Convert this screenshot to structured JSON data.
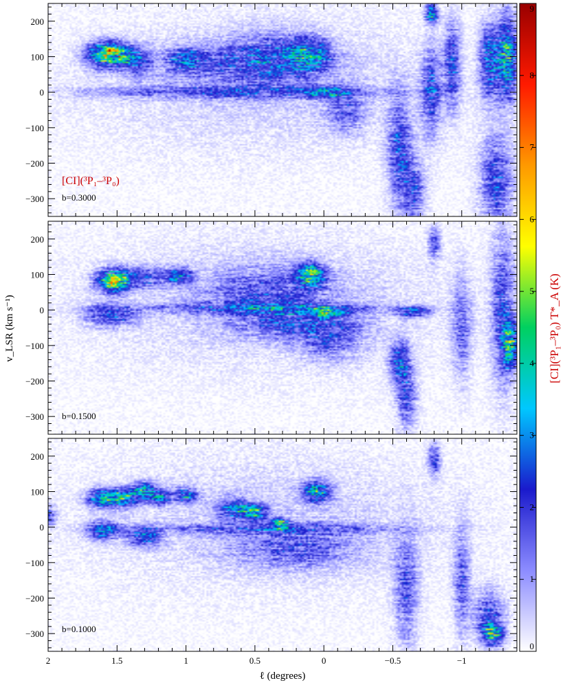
{
  "chart_data": {
    "type": "heatmap",
    "xlabel": "ℓ (degrees)",
    "ylabel": "v_LSR (km s⁻¹)",
    "xlim": [
      2.0,
      -1.4
    ],
    "ylim": [
      -350,
      250
    ],
    "x_ticks": [
      2,
      1.5,
      1,
      0.5,
      0,
      -0.5,
      -1
    ],
    "x_tick_labels": [
      "2",
      "1.5",
      "1",
      "0.5",
      "0",
      "−0.5",
      "−1"
    ],
    "y_ticks": [
      -300,
      -200,
      -100,
      0,
      100,
      200
    ],
    "y_tick_labels": [
      "−300",
      "−200",
      "−100",
      "0",
      "100",
      "200"
    ],
    "species_label": "[CI](³P₁–³P₀)",
    "colorbar": {
      "label": "[CI](³P₁–³P₀) T*_A (K)",
      "range": [
        0,
        9
      ],
      "ticks": [
        0,
        1,
        2,
        3,
        4,
        5,
        6,
        7,
        8,
        9
      ],
      "tick_labels": [
        "0",
        "1",
        "2",
        "3",
        "4",
        "5",
        "6",
        "7",
        "8",
        "9"
      ],
      "colormap": [
        "#ffffff",
        "#8c8cff",
        "#1a1acc",
        "#00c8ff",
        "#00d060",
        "#ffff00",
        "#ff9900",
        "#ff1a00",
        "#990000"
      ]
    },
    "panels": [
      {
        "b_label": "b=0.3000",
        "features": [
          {
            "l": 1.62,
            "v": 105,
            "peak": 3.2,
            "sl": 0.08,
            "sv": 25
          },
          {
            "l": 1.52,
            "v": 110,
            "peak": 4.2,
            "sl": 0.07,
            "sv": 20
          },
          {
            "l": 1.37,
            "v": 90,
            "peak": 2.4,
            "sl": 0.07,
            "sv": 25
          },
          {
            "l": 1.0,
            "v": 90,
            "peak": 2.4,
            "sl": 0.07,
            "sv": 20
          },
          {
            "l": 0.1,
            "v": 105,
            "peak": 2.8,
            "sl": 0.1,
            "sv": 30
          },
          {
            "l": 0.7,
            "v": 80,
            "peak": 1.3,
            "sl": 0.4,
            "sv": 40
          },
          {
            "l": 0.35,
            "v": 100,
            "peak": 1.5,
            "sl": 0.2,
            "sv": 50
          },
          {
            "l": 0.7,
            "v": 0,
            "peak": 1.6,
            "sl": 0.7,
            "sv": 12
          },
          {
            "l": 0.0,
            "v": 0,
            "peak": 2.6,
            "sl": 0.1,
            "sv": 10
          },
          {
            "l": -0.15,
            "v": -50,
            "peak": 1.5,
            "sl": 0.1,
            "sv": 40
          },
          {
            "l": -0.55,
            "v": -170,
            "peak": 2.2,
            "sl": 0.06,
            "sv": 100
          },
          {
            "l": -0.65,
            "v": -280,
            "peak": 1.8,
            "sl": 0.06,
            "sv": 60
          },
          {
            "l": -0.78,
            "v": 220,
            "peak": 4.0,
            "sl": 0.03,
            "sv": 18
          },
          {
            "l": -0.78,
            "v": 0,
            "peak": 2.2,
            "sl": 0.05,
            "sv": 80
          },
          {
            "l": -0.93,
            "v": 80,
            "peak": 2.3,
            "sl": 0.04,
            "sv": 80
          },
          {
            "l": -1.2,
            "v": 90,
            "peak": 2.8,
            "sl": 0.05,
            "sv": 70
          },
          {
            "l": -1.33,
            "v": 100,
            "peak": 3.8,
            "sl": 0.05,
            "sv": 80
          },
          {
            "l": -1.25,
            "v": -250,
            "peak": 2.2,
            "sl": 0.08,
            "sv": 90
          }
        ]
      },
      {
        "b_label": "b=0.1500",
        "features": [
          {
            "l": 1.53,
            "v": 80,
            "peak": 4.3,
            "sl": 0.08,
            "sv": 22
          },
          {
            "l": 1.35,
            "v": 90,
            "peak": 2.0,
            "sl": 0.15,
            "sv": 20
          },
          {
            "l": 1.05,
            "v": 95,
            "peak": 2.8,
            "sl": 0.06,
            "sv": 15
          },
          {
            "l": 1.55,
            "v": -15,
            "peak": 2.5,
            "sl": 0.12,
            "sv": 20
          },
          {
            "l": 0.1,
            "v": 100,
            "peak": 4.2,
            "sl": 0.07,
            "sv": 22
          },
          {
            "l": 0.4,
            "v": 50,
            "peak": 1.4,
            "sl": 0.3,
            "sv": 50
          },
          {
            "l": 0.5,
            "v": 5,
            "peak": 1.7,
            "sl": 0.6,
            "sv": 10
          },
          {
            "l": 0.0,
            "v": -5,
            "peak": 2.5,
            "sl": 0.12,
            "sv": 10
          },
          {
            "l": 0.2,
            "v": -40,
            "peak": 1.4,
            "sl": 0.3,
            "sv": 30
          },
          {
            "l": -0.05,
            "v": -90,
            "peak": 1.3,
            "sl": 0.15,
            "sv": 40
          },
          {
            "l": -0.55,
            "v": -150,
            "peak": 2.6,
            "sl": 0.05,
            "sv": 40
          },
          {
            "l": -0.6,
            "v": -250,
            "peak": 1.8,
            "sl": 0.05,
            "sv": 60
          },
          {
            "l": -0.65,
            "v": -5,
            "peak": 2.4,
            "sl": 0.08,
            "sv": 10
          },
          {
            "l": -0.8,
            "v": 190,
            "peak": 2.0,
            "sl": 0.03,
            "sv": 30
          },
          {
            "l": -1.0,
            "v": -50,
            "peak": 1.5,
            "sl": 0.05,
            "sv": 100
          },
          {
            "l": -1.35,
            "v": -100,
            "peak": 4.0,
            "sl": 0.04,
            "sv": 40
          },
          {
            "l": -1.3,
            "v": 0,
            "peak": 2.0,
            "sl": 0.06,
            "sv": 150
          }
        ]
      },
      {
        "b_label": "b=0.1000",
        "features": [
          {
            "l": 1.6,
            "v": 80,
            "peak": 3.4,
            "sl": 0.08,
            "sv": 18
          },
          {
            "l": 1.45,
            "v": 85,
            "peak": 3.3,
            "sl": 0.07,
            "sv": 18
          },
          {
            "l": 1.3,
            "v": 100,
            "peak": 3.2,
            "sl": 0.06,
            "sv": 18
          },
          {
            "l": 1.18,
            "v": 85,
            "peak": 2.6,
            "sl": 0.05,
            "sv": 15
          },
          {
            "l": 1.0,
            "v": 90,
            "peak": 2.8,
            "sl": 0.06,
            "sv": 15
          },
          {
            "l": 1.6,
            "v": -10,
            "peak": 2.6,
            "sl": 0.08,
            "sv": 18
          },
          {
            "l": 1.3,
            "v": -25,
            "peak": 3.0,
            "sl": 0.08,
            "sv": 18
          },
          {
            "l": 0.05,
            "v": 100,
            "peak": 3.8,
            "sl": 0.07,
            "sv": 20
          },
          {
            "l": 0.65,
            "v": 50,
            "peak": 2.6,
            "sl": 0.08,
            "sv": 20
          },
          {
            "l": 0.5,
            "v": 40,
            "peak": 3.3,
            "sl": 0.06,
            "sv": 15
          },
          {
            "l": 0.32,
            "v": 10,
            "peak": 3.8,
            "sl": 0.04,
            "sv": 10
          },
          {
            "l": 0.4,
            "v": -5,
            "peak": 1.5,
            "sl": 0.6,
            "sv": 10
          },
          {
            "l": 0.2,
            "v": -60,
            "peak": 1.4,
            "sl": 0.3,
            "sv": 40
          },
          {
            "l": -0.6,
            "v": -180,
            "peak": 1.8,
            "sl": 0.06,
            "sv": 100
          },
          {
            "l": -0.8,
            "v": 190,
            "peak": 2.2,
            "sl": 0.03,
            "sv": 30
          },
          {
            "l": -1.0,
            "v": -150,
            "peak": 1.7,
            "sl": 0.04,
            "sv": 100
          },
          {
            "l": -1.23,
            "v": -300,
            "peak": 3.8,
            "sl": 0.05,
            "sv": 20
          },
          {
            "l": -1.2,
            "v": -250,
            "peak": 2.0,
            "sl": 0.08,
            "sv": 50
          },
          {
            "l": 2.0,
            "v": 30,
            "peak": 2.0,
            "sl": 0.04,
            "sv": 20
          }
        ]
      }
    ]
  }
}
